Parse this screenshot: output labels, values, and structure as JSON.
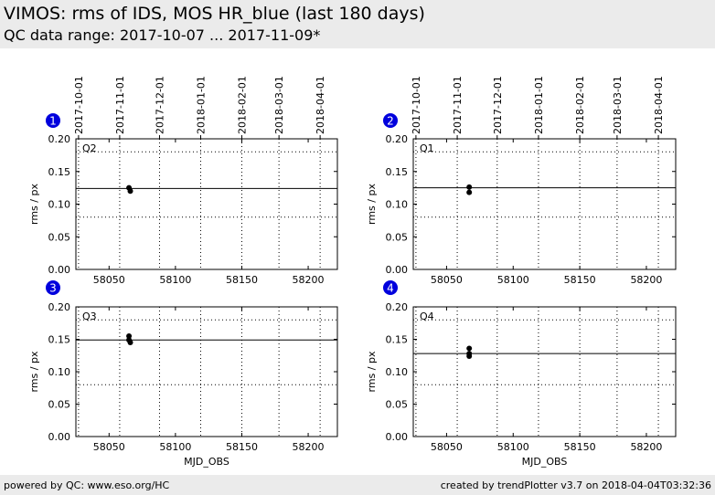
{
  "header": {
    "title": "VIMOS: rms of IDS, MOS HR_blue (last 180 days)",
    "subtitle": "QC data range: 2017-10-07 ... 2017-11-09*"
  },
  "footer": {
    "left": "powered by QC: www.eso.org/HC",
    "right": "created by trendPlotter v3.7 on 2018-04-04T03:32:36"
  },
  "colors": {
    "badge": "#0000dd",
    "points": "#000000",
    "header_bg": "#ebebeb"
  },
  "chart_data": [
    {
      "type": "scatter",
      "panel_number": "1",
      "label": "Q2",
      "ylabel": "rms / px",
      "xlabel": "",
      "xlim": [
        58025,
        58222
      ],
      "ylim": [
        0,
        0.2
      ],
      "x_ticks": [
        58050,
        58100,
        58150,
        58200
      ],
      "y_ticks": [
        "0.00",
        "0.05",
        "0.10",
        "0.15",
        "0.20"
      ],
      "date_ticks": [
        "2017-10-01",
        "2017-11-01",
        "2017-12-01",
        "2018-01-01",
        "2018-02-01",
        "2018-03-01",
        "2018-04-01"
      ],
      "date_tick_mjd": [
        58027,
        58058,
        58088,
        58119,
        58150,
        58178,
        58209
      ],
      "threshold_lines": [
        0.18,
        0.08
      ],
      "average": 0.124,
      "x": [
        58065,
        58066
      ],
      "y": [
        0.125,
        0.12
      ]
    },
    {
      "type": "scatter",
      "panel_number": "2",
      "label": "Q1",
      "ylabel": "rms / px",
      "xlabel": "",
      "xlim": [
        58025,
        58222
      ],
      "ylim": [
        0,
        0.2
      ],
      "x_ticks": [
        58050,
        58100,
        58150,
        58200
      ],
      "y_ticks": [
        "0.00",
        "0.05",
        "0.10",
        "0.15",
        "0.20"
      ],
      "date_ticks": [
        "2017-10-01",
        "2017-11-01",
        "2017-12-01",
        "2018-01-01",
        "2018-02-01",
        "2018-03-01",
        "2018-04-01"
      ],
      "date_tick_mjd": [
        58027,
        58058,
        58088,
        58119,
        58150,
        58178,
        58209
      ],
      "threshold_lines": [
        0.18,
        0.08
      ],
      "average": 0.125,
      "x": [
        58067,
        58067
      ],
      "y": [
        0.126,
        0.118
      ]
    },
    {
      "type": "scatter",
      "panel_number": "3",
      "label": "Q3",
      "ylabel": "rms / px",
      "xlabel": "MJD_OBS",
      "xlim": [
        58025,
        58222
      ],
      "ylim": [
        0,
        0.2
      ],
      "x_ticks": [
        58050,
        58100,
        58150,
        58200
      ],
      "y_ticks": [
        "0.00",
        "0.05",
        "0.10",
        "0.15",
        "0.20"
      ],
      "date_ticks": [],
      "date_tick_mjd": [
        58027,
        58058,
        58088,
        58119,
        58150,
        58178,
        58209
      ],
      "threshold_lines": [
        0.18,
        0.08
      ],
      "average": 0.149,
      "x": [
        58065,
        58065,
        58066
      ],
      "y": [
        0.155,
        0.149,
        0.145
      ]
    },
    {
      "type": "scatter",
      "panel_number": "4",
      "label": "Q4",
      "ylabel": "rms / px",
      "xlabel": "MJD_OBS",
      "xlim": [
        58025,
        58222
      ],
      "ylim": [
        0,
        0.2
      ],
      "x_ticks": [
        58050,
        58100,
        58150,
        58200
      ],
      "y_ticks": [
        "0.00",
        "0.05",
        "0.10",
        "0.15",
        "0.20"
      ],
      "date_ticks": [],
      "date_tick_mjd": [
        58027,
        58058,
        58088,
        58119,
        58150,
        58178,
        58209
      ],
      "threshold_lines": [
        0.18,
        0.08
      ],
      "average": 0.128,
      "x": [
        58067,
        58067,
        58067
      ],
      "y": [
        0.136,
        0.128,
        0.124
      ]
    }
  ]
}
